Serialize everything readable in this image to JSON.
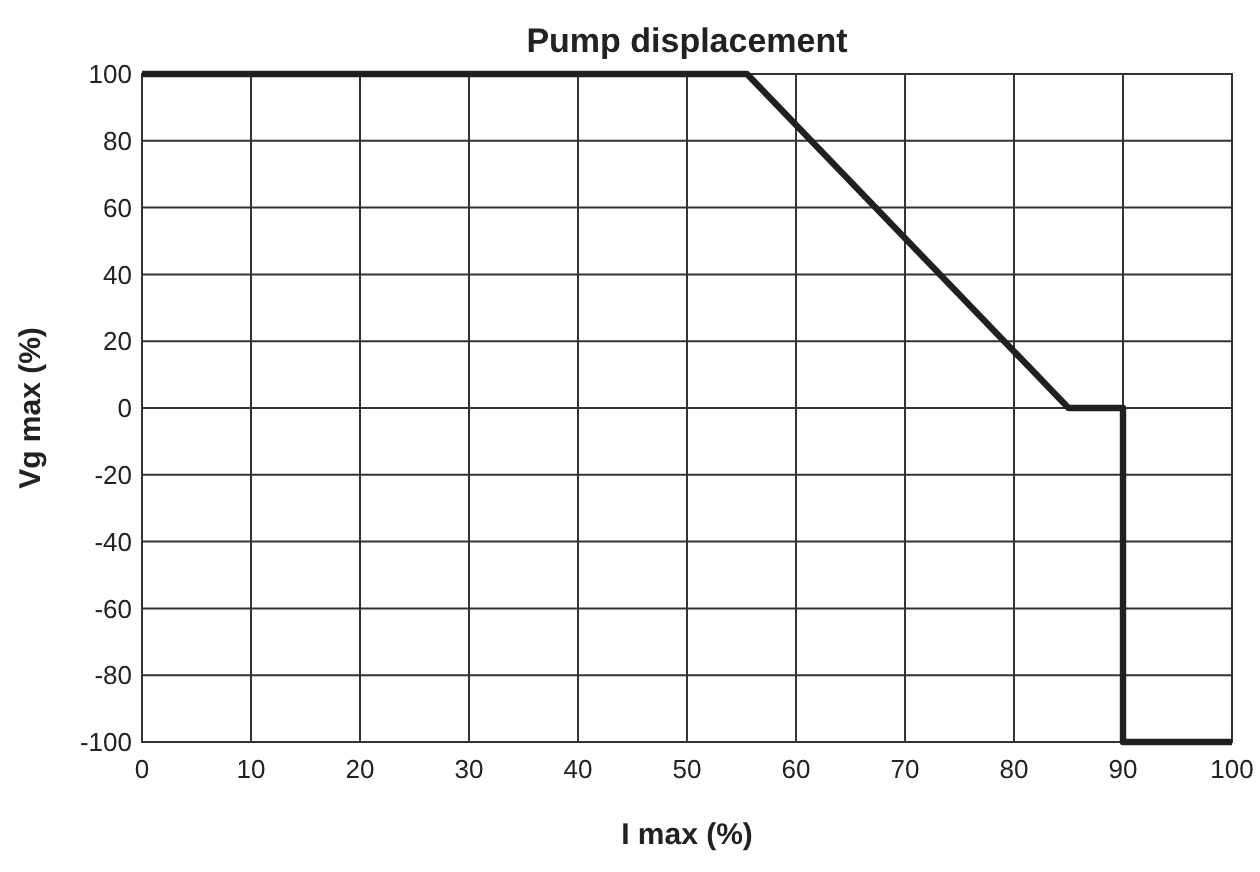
{
  "chart_data": {
    "type": "line",
    "title": "Pump displacement",
    "xlabel": "I max (%)",
    "ylabel": "Vg max (%)",
    "x": [
      0,
      55.5,
      85,
      90,
      90,
      100
    ],
    "series": [
      {
        "color": "#231f20",
        "values": [
          100,
          100,
          0,
          0,
          -100,
          -100
        ]
      }
    ],
    "xlim": [
      0,
      100
    ],
    "xticks": [
      0,
      10,
      20,
      30,
      40,
      50,
      60,
      70,
      80,
      90,
      100
    ],
    "ylim": [
      -100,
      100
    ],
    "yticks": [
      -100,
      -80,
      -60,
      -40,
      -20,
      0,
      20,
      40,
      60,
      80,
      100
    ],
    "grid": true,
    "marker": "none",
    "line_style": "solid"
  }
}
